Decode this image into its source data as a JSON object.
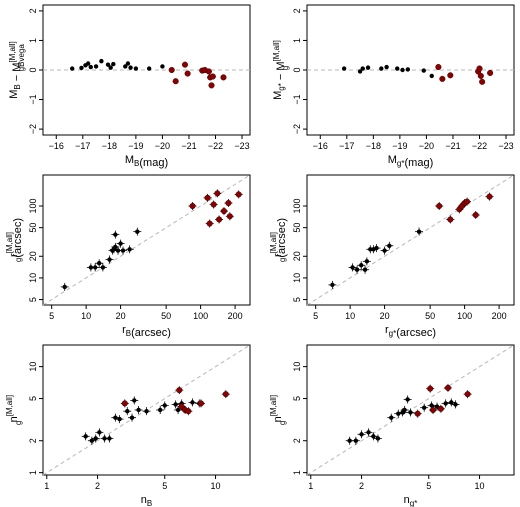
{
  "chart_data": [
    {
      "type": "scatter",
      "xlabel": "M_B(mag)",
      "ylabel": "M_B − M_gBvega^[M,all]",
      "xlim": [
        -15.5,
        -23.3
      ],
      "ylim": [
        -2.2,
        2.2
      ],
      "xticks": [
        -16,
        -17,
        -18,
        -19,
        -20,
        -21,
        -22,
        -23
      ],
      "xticklabels": [
        "−16",
        "−17",
        "−18",
        "−19",
        "−20",
        "−21",
        "−22",
        "−23"
      ],
      "yticks": [
        -2,
        -1,
        0,
        1,
        2
      ],
      "yticklabels": [
        "−2",
        "−1",
        "0",
        "1",
        "2"
      ],
      "ref_line": "horizontal at y = 0",
      "series": [
        {
          "color": "#000000",
          "points": [
            [
              -16.6,
              0.05
            ],
            [
              -16.95,
              0.07
            ],
            [
              -17.1,
              0.16
            ],
            [
              -17.2,
              0.22
            ],
            [
              -17.3,
              0.1
            ],
            [
              -17.5,
              0.12
            ],
            [
              -17.7,
              0.3
            ],
            [
              -17.95,
              0.18
            ],
            [
              -18.05,
              0.08
            ],
            [
              -18.15,
              0.2
            ],
            [
              -18.6,
              0.12
            ],
            [
              -18.7,
              0.22
            ],
            [
              -18.8,
              0.08
            ],
            [
              -19.0,
              0.05
            ],
            [
              -19.5,
              0.05
            ],
            [
              -20.0,
              0.12
            ]
          ]
        },
        {
          "color": "#8b0000",
          "points": [
            [
              -20.35,
              0.0
            ],
            [
              -20.5,
              -0.38
            ],
            [
              -20.85,
              0.18
            ],
            [
              -20.95,
              -0.12
            ],
            [
              -21.5,
              -0.02
            ],
            [
              -21.6,
              0.0
            ],
            [
              -21.75,
              -0.05
            ],
            [
              -21.8,
              -0.25
            ],
            [
              -21.85,
              -0.52
            ],
            [
              -21.9,
              -0.22
            ],
            [
              -22.3,
              -0.25
            ]
          ]
        }
      ]
    },
    {
      "type": "scatter",
      "xlabel": "M_g*(mag)",
      "ylabel": "M_g* − M_g^[M,all]",
      "xlim": [
        -15.5,
        -23.3
      ],
      "ylim": [
        -2.2,
        2.2
      ],
      "xticks": [
        -16,
        -17,
        -18,
        -19,
        -20,
        -21,
        -22,
        -23
      ],
      "xticklabels": [
        "−16",
        "−17",
        "−18",
        "−19",
        "−20",
        "−21",
        "−22",
        "−23"
      ],
      "yticks": [
        -2,
        -1,
        0,
        1,
        2
      ],
      "yticklabels": [
        "−2",
        "−1",
        "0",
        "1",
        "2"
      ],
      "ref_line": "horizontal at y = 0",
      "series": [
        {
          "color": "#000000",
          "points": [
            [
              -16.9,
              0.05
            ],
            [
              -17.5,
              -0.05
            ],
            [
              -17.6,
              0.05
            ],
            [
              -17.8,
              0.08
            ],
            [
              -18.3,
              0.05
            ],
            [
              -18.5,
              0.1
            ],
            [
              -18.9,
              0.05
            ],
            [
              -19.1,
              0.0
            ],
            [
              -19.3,
              0.02
            ],
            [
              -19.9,
              -0.02
            ],
            [
              -20.2,
              -0.2
            ]
          ]
        },
        {
          "color": "#8b0000",
          "points": [
            [
              -20.45,
              0.1
            ],
            [
              -20.6,
              -0.3
            ],
            [
              -20.9,
              -0.18
            ],
            [
              -21.95,
              -0.05
            ],
            [
              -22.0,
              0.05
            ],
            [
              -22.05,
              -0.2
            ],
            [
              -22.1,
              -0.4
            ],
            [
              -22.4,
              -0.1
            ]
          ]
        }
      ]
    },
    {
      "type": "scatter",
      "scale": "log-log",
      "xlabel": "r_B(arcsec)",
      "ylabel": "r_g^[M,all](arcsec)",
      "xlim": [
        4.2,
        270
      ],
      "ylim": [
        4.2,
        270
      ],
      "xticks": [
        5,
        10,
        20,
        50,
        100,
        200
      ],
      "xticklabels": [
        "5",
        "10",
        "20",
        "50",
        "100",
        "200"
      ],
      "yticks": [
        5,
        10,
        20,
        50,
        100
      ],
      "yticklabels": [
        "5",
        "10",
        "20",
        "50",
        "100"
      ],
      "ref_line": "one-to-one (y = x)",
      "series": [
        {
          "color": "#000000",
          "points": [
            [
              6.5,
              7.5
            ],
            [
              11,
              14
            ],
            [
              12,
              14
            ],
            [
              13,
              16
            ],
            [
              14,
              14
            ],
            [
              16,
              18
            ],
            [
              17,
              24
            ],
            [
              17.5,
              25
            ],
            [
              18,
              27
            ],
            [
              18,
              40
            ],
            [
              19,
              24
            ],
            [
              20,
              30
            ],
            [
              21,
              24
            ],
            [
              24,
              25
            ],
            [
              28,
              44
            ]
          ]
        },
        {
          "color": "#8b0000",
          "points": [
            [
              85,
              100
            ],
            [
              115,
              130
            ],
            [
              120,
              57
            ],
            [
              130,
              105
            ],
            [
              140,
              150
            ],
            [
              145,
              65
            ],
            [
              160,
              85
            ],
            [
              175,
              110
            ],
            [
              180,
              72
            ],
            [
              215,
              145
            ]
          ]
        }
      ]
    },
    {
      "type": "scatter",
      "scale": "log-log",
      "xlabel": "r_g*(arcsec)",
      "ylabel": "r_g^[M,all](arcsec)",
      "xlim": [
        4.2,
        270
      ],
      "ylim": [
        4.2,
        270
      ],
      "xticks": [
        5,
        10,
        20,
        50,
        100,
        200
      ],
      "xticklabels": [
        "5",
        "10",
        "20",
        "50",
        "100",
        "200"
      ],
      "yticks": [
        5,
        10,
        20,
        50,
        100
      ],
      "yticklabels": [
        "5",
        "10",
        "20",
        "50",
        "100"
      ],
      "ref_line": "one-to-one (y = x)",
      "series": [
        {
          "color": "#000000",
          "points": [
            [
              7,
              8
            ],
            [
              10.5,
              14
            ],
            [
              11.5,
              13
            ],
            [
              12.5,
              15
            ],
            [
              13.5,
              13
            ],
            [
              14,
              17
            ],
            [
              15,
              25
            ],
            [
              16,
              25
            ],
            [
              17,
              26
            ],
            [
              20,
              24
            ],
            [
              22,
              28
            ],
            [
              40,
              44
            ]
          ]
        },
        {
          "color": "#8b0000",
          "points": [
            [
              60,
              100
            ],
            [
              75,
              65
            ],
            [
              90,
              90
            ],
            [
              95,
              100
            ],
            [
              100,
              110
            ],
            [
              105,
              115
            ],
            [
              125,
              75
            ],
            [
              165,
              135
            ]
          ]
        }
      ]
    },
    {
      "type": "scatter",
      "scale": "log-log",
      "xlabel": "n_B",
      "ylabel": "n_g^[M,all]",
      "xlim": [
        0.95,
        16
      ],
      "ylim": [
        0.95,
        16
      ],
      "xticks": [
        1,
        2,
        5,
        10
      ],
      "xticklabels": [
        "1",
        "2",
        "5",
        "10"
      ],
      "yticks": [
        1,
        2,
        5,
        10
      ],
      "yticklabels": [
        "1",
        "2",
        "5",
        "10"
      ],
      "ref_line": "one-to-one (y = x)",
      "series": [
        {
          "color": "#000000",
          "points": [
            [
              1.7,
              2.2
            ],
            [
              1.85,
              2.0
            ],
            [
              1.95,
              2.1
            ],
            [
              2.05,
              2.4
            ],
            [
              2.2,
              2.1
            ],
            [
              2.35,
              2.1
            ],
            [
              2.55,
              3.3
            ],
            [
              2.7,
              3.2
            ],
            [
              3.0,
              3.8
            ],
            [
              3.2,
              3.3
            ],
            [
              3.3,
              4.8
            ],
            [
              3.5,
              3.9
            ],
            [
              3.9,
              3.8
            ],
            [
              4.7,
              3.9
            ],
            [
              5.0,
              4.3
            ],
            [
              5.8,
              4.4
            ],
            [
              6.0,
              3.9
            ],
            [
              6.3,
              4.5
            ],
            [
              7.3,
              4.6
            ],
            [
              8.0,
              4.5
            ]
          ]
        },
        {
          "color": "#8b0000",
          "points": [
            [
              2.9,
              4.5
            ],
            [
              6.1,
              6.0
            ],
            [
              6.3,
              4.2
            ],
            [
              6.6,
              3.9
            ],
            [
              6.9,
              3.8
            ],
            [
              8.2,
              4.5
            ],
            [
              11.5,
              5.5
            ]
          ]
        }
      ]
    },
    {
      "type": "scatter",
      "scale": "log-log",
      "xlabel": "n_g*",
      "ylabel": "n_g^[M,all]",
      "xlim": [
        0.95,
        16
      ],
      "ylim": [
        0.95,
        16
      ],
      "xticks": [
        1,
        2,
        5,
        10
      ],
      "xticklabels": [
        "1",
        "2",
        "5",
        "10"
      ],
      "yticks": [
        1,
        2,
        5,
        10
      ],
      "yticklabels": [
        "1",
        "2",
        "5",
        "10"
      ],
      "ref_line": "one-to-one (y = x)",
      "series": [
        {
          "color": "#000000",
          "points": [
            [
              1.7,
              2.0
            ],
            [
              1.85,
              2.0
            ],
            [
              2.0,
              2.3
            ],
            [
              2.2,
              2.4
            ],
            [
              2.35,
              2.2
            ],
            [
              2.5,
              2.1
            ],
            [
              3.0,
              3.3
            ],
            [
              3.3,
              3.6
            ],
            [
              3.5,
              3.7
            ],
            [
              3.6,
              3.9
            ],
            [
              3.75,
              4.9
            ],
            [
              3.9,
              3.7
            ],
            [
              4.7,
              4.1
            ],
            [
              5.2,
              4.3
            ],
            [
              5.6,
              4.2
            ],
            [
              6.3,
              4.5
            ],
            [
              6.8,
              4.6
            ],
            [
              7.2,
              4.4
            ]
          ]
        },
        {
          "color": "#8b0000",
          "points": [
            [
              4.3,
              3.6
            ],
            [
              5.1,
              6.2
            ],
            [
              5.3,
              3.9
            ],
            [
              5.9,
              4.0
            ],
            [
              6.5,
              6.3
            ],
            [
              8.5,
              5.5
            ]
          ]
        }
      ]
    }
  ]
}
